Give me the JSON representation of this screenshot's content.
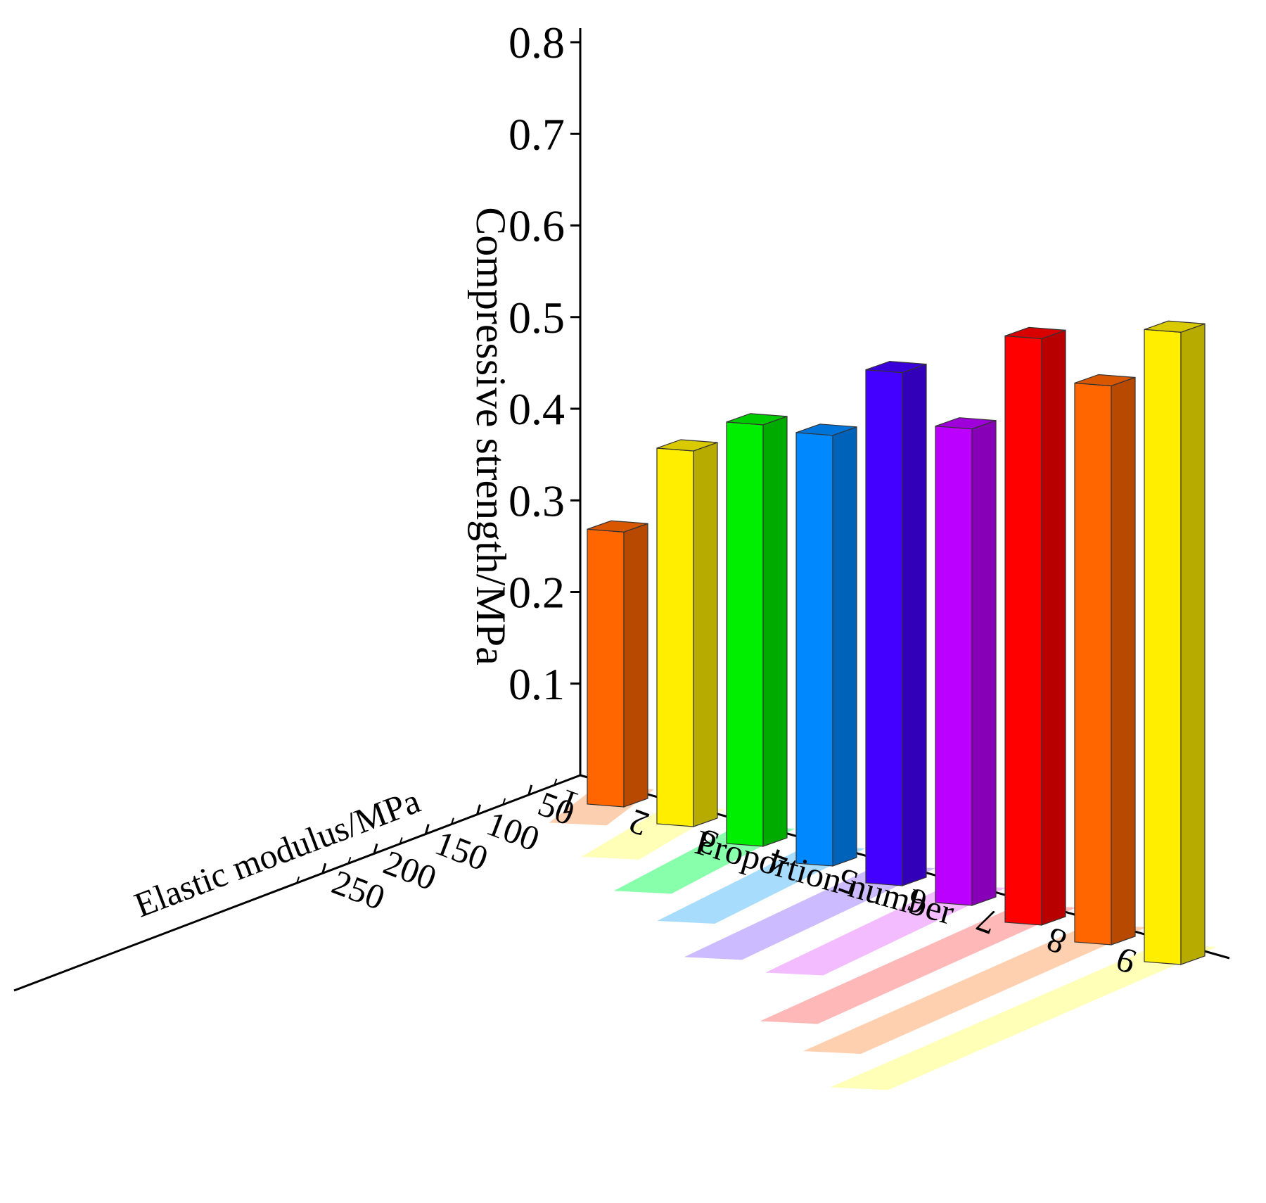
{
  "chart_data": {
    "type": "bar",
    "categories": [
      "1",
      "2",
      "3",
      "4",
      "5",
      "6",
      "7",
      "8",
      "9"
    ],
    "series": [
      {
        "name": "",
        "compressive_strength": [
          0.3,
          0.41,
          0.46,
          0.47,
          0.56,
          0.52,
          0.64,
          0.61,
          0.69
        ],
        "elastic_modulus": [
          40,
          75,
          110,
          135,
          175,
          165,
          235,
          260,
          300
        ]
      }
    ],
    "zlabel": "Compressive strength/MPa",
    "ylabel": "Elastic modulus/MPa",
    "xlabel": "Proportion number",
    "z_ticks": [
      "0.1",
      "0.2",
      "0.3",
      "0.4",
      "0.5",
      "0.6",
      "0.7",
      "0.8"
    ],
    "y_ticks": [
      "50",
      "100",
      "150",
      "200",
      "250"
    ],
    "zlim": [
      0,
      0.8
    ],
    "grid": false,
    "bar_colors": [
      "#ff6600",
      "#ffee00",
      "#00ee00",
      "#0088ff",
      "#4400ff",
      "#bb00ff",
      "#ff0000",
      "#ff6600",
      "#ffee00"
    ],
    "band_colors": [
      "#fccfb0",
      "#ffffb8",
      "#88ffaa",
      "#a8dcfc",
      "#ccbbff",
      "#f2bcff",
      "#ffb8b8",
      "#ffd0b0",
      "#ffffb8"
    ]
  }
}
